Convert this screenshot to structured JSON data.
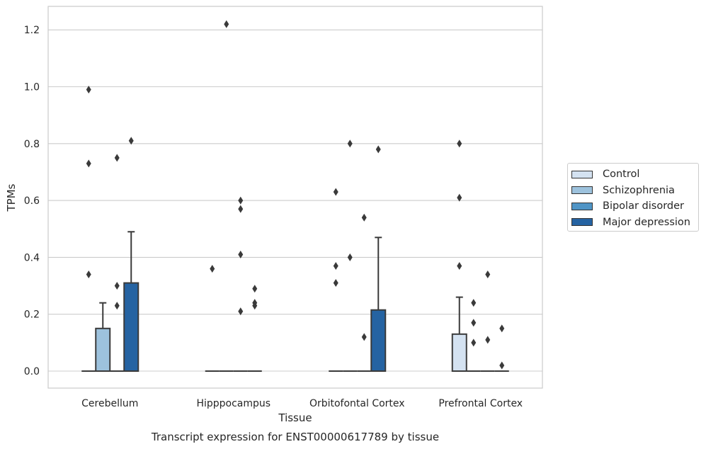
{
  "chart_data": {
    "type": "box",
    "title": "Transcript expression for ENST00000617789 by tissue",
    "xlabel": "Tissue",
    "ylabel": "TPMs",
    "categories": [
      "Cerebellum",
      "Hipppocampus",
      "Orbitofontal Cortex",
      "Prefrontal Cortex"
    ],
    "ylim": [
      -0.06,
      1.28
    ],
    "yticks": [
      0.0,
      0.2,
      0.4,
      0.6,
      0.8,
      1.0,
      1.2
    ],
    "ytick_labels": [
      "0.0",
      "0.2",
      "0.4",
      "0.6",
      "0.8",
      "1.0",
      "1.2"
    ],
    "grid": true,
    "legend_position": "right",
    "series": [
      {
        "name": "Control",
        "color": "#d4e2f1",
        "boxes": [
          {
            "q1": 0,
            "median": 0,
            "q3": 0,
            "whisker_low": 0,
            "whisker_high": 0,
            "outliers": [
              0.99,
              0.73,
              0.34
            ]
          },
          {
            "q1": 0,
            "median": 0,
            "q3": 0,
            "whisker_low": 0,
            "whisker_high": 0,
            "outliers": [
              0.36
            ]
          },
          {
            "q1": 0,
            "median": 0,
            "q3": 0,
            "whisker_low": 0,
            "whisker_high": 0,
            "outliers": [
              0.63,
              0.37,
              0.31
            ]
          },
          {
            "q1": 0,
            "median": 0,
            "q3": 0.13,
            "whisker_low": 0,
            "whisker_high": 0.26,
            "outliers": [
              0.8,
              0.61,
              0.37
            ]
          }
        ]
      },
      {
        "name": "Schizophrenia",
        "color": "#9dc2dd",
        "boxes": [
          {
            "q1": 0,
            "median": 0,
            "q3": 0.15,
            "whisker_low": 0,
            "whisker_high": 0.24,
            "outliers": []
          },
          {
            "q1": 0,
            "median": 0,
            "q3": 0,
            "whisker_low": 0,
            "whisker_high": 0,
            "outliers": [
              1.22
            ]
          },
          {
            "q1": 0,
            "median": 0,
            "q3": 0,
            "whisker_low": 0,
            "whisker_high": 0,
            "outliers": [
              0.8,
              0.4
            ]
          },
          {
            "q1": 0,
            "median": 0,
            "q3": 0,
            "whisker_low": 0,
            "whisker_high": 0,
            "outliers": [
              0.24,
              0.17,
              0.1
            ]
          }
        ]
      },
      {
        "name": "Bipolar disorder",
        "color": "#5095c6",
        "boxes": [
          {
            "q1": 0,
            "median": 0,
            "q3": 0,
            "whisker_low": 0,
            "whisker_high": 0,
            "outliers": [
              0.75,
              0.3,
              0.23
            ]
          },
          {
            "q1": 0,
            "median": 0,
            "q3": 0,
            "whisker_low": 0,
            "whisker_high": 0,
            "outliers": [
              0.6,
              0.57,
              0.41,
              0.21
            ]
          },
          {
            "q1": 0,
            "median": 0,
            "q3": 0,
            "whisker_low": 0,
            "whisker_high": 0,
            "outliers": [
              0.54,
              0.12
            ]
          },
          {
            "q1": 0,
            "median": 0,
            "q3": 0,
            "whisker_low": 0,
            "whisker_high": 0,
            "outliers": [
              0.34,
              0.11
            ]
          }
        ]
      },
      {
        "name": "Major depression",
        "color": "#2563a2",
        "boxes": [
          {
            "q1": 0,
            "median": 0,
            "q3": 0.31,
            "whisker_low": 0,
            "whisker_high": 0.49,
            "outliers": [
              0.81
            ]
          },
          {
            "q1": 0,
            "median": 0,
            "q3": 0,
            "whisker_low": 0,
            "whisker_high": 0,
            "outliers": [
              0.29,
              0.24,
              0.23
            ]
          },
          {
            "q1": 0,
            "median": 0,
            "q3": 0.215,
            "whisker_low": 0,
            "whisker_high": 0.47,
            "outliers": [
              0.78
            ]
          },
          {
            "q1": 0,
            "median": 0,
            "q3": 0,
            "whisker_low": 0,
            "whisker_high": 0,
            "outliers": [
              0.15,
              0.02
            ]
          }
        ]
      }
    ]
  }
}
